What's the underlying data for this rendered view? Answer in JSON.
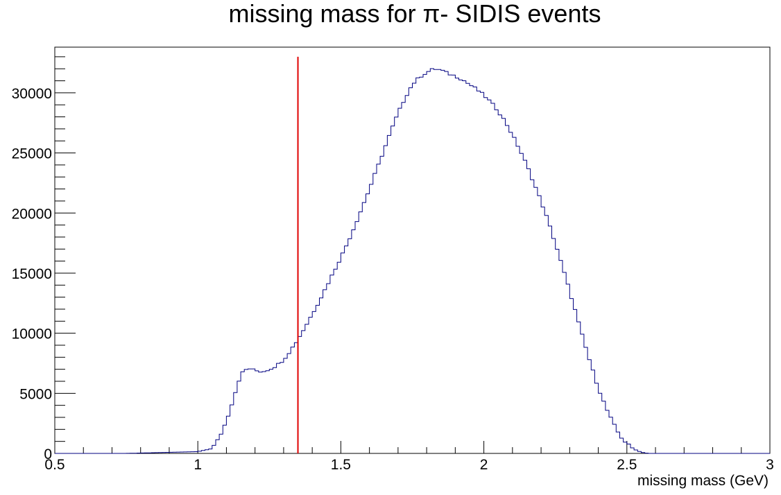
{
  "chart_data": {
    "type": "histogram",
    "title": "missing mass for π- SIDIS events",
    "xlabel": "missing mass (GeV)",
    "ylabel": "",
    "xlim": [
      0.5,
      3.0
    ],
    "ylim": [
      0,
      33800
    ],
    "x_ticks": [
      "0.5",
      "1",
      "1.5",
      "2",
      "2.5",
      "3"
    ],
    "y_ticks": [
      "0",
      "5000",
      "10000",
      "15000",
      "20000",
      "25000",
      "30000"
    ],
    "bin_width": 0.0125,
    "series": [
      {
        "line_color": "#000080",
        "x": [
          0.75,
          1.0,
          1.05,
          1.075,
          1.1,
          1.125,
          1.15,
          1.175,
          1.2,
          1.225,
          1.25,
          1.275,
          1.3,
          1.325,
          1.35,
          1.375,
          1.4,
          1.425,
          1.45,
          1.475,
          1.5,
          1.525,
          1.55,
          1.575,
          1.6,
          1.625,
          1.65,
          1.675,
          1.7,
          1.725,
          1.75,
          1.775,
          1.8,
          1.825,
          1.85,
          1.875,
          1.9,
          1.925,
          1.95,
          1.975,
          2.0,
          2.025,
          2.05,
          2.075,
          2.1,
          2.125,
          2.15,
          2.175,
          2.2,
          2.225,
          2.25,
          2.275,
          2.3,
          2.325,
          2.35,
          2.375,
          2.4,
          2.425,
          2.45,
          2.475,
          2.5,
          2.525,
          2.55,
          2.575,
          2.6
        ],
        "y": [
          0,
          150,
          400,
          1300,
          2700,
          4600,
          6600,
          7100,
          6900,
          6800,
          7000,
          7300,
          7800,
          8600,
          9500,
          10500,
          11600,
          12700,
          13900,
          15100,
          16300,
          17600,
          19000,
          20500,
          22000,
          23600,
          25200,
          26800,
          28300,
          29600,
          30700,
          31300,
          31700,
          32000,
          31900,
          31600,
          31400,
          31100,
          30700,
          30300,
          29800,
          29200,
          28500,
          27600,
          26500,
          25300,
          24000,
          22500,
          21000,
          19300,
          17500,
          15500,
          13500,
          11400,
          9300,
          7300,
          5500,
          3900,
          2600,
          1500,
          800,
          350,
          100,
          0,
          0
        ]
      }
    ],
    "annotations": [
      {
        "type": "vertical-line",
        "x": 1.35,
        "y_top": 33000,
        "color": "#e00000"
      }
    ]
  }
}
